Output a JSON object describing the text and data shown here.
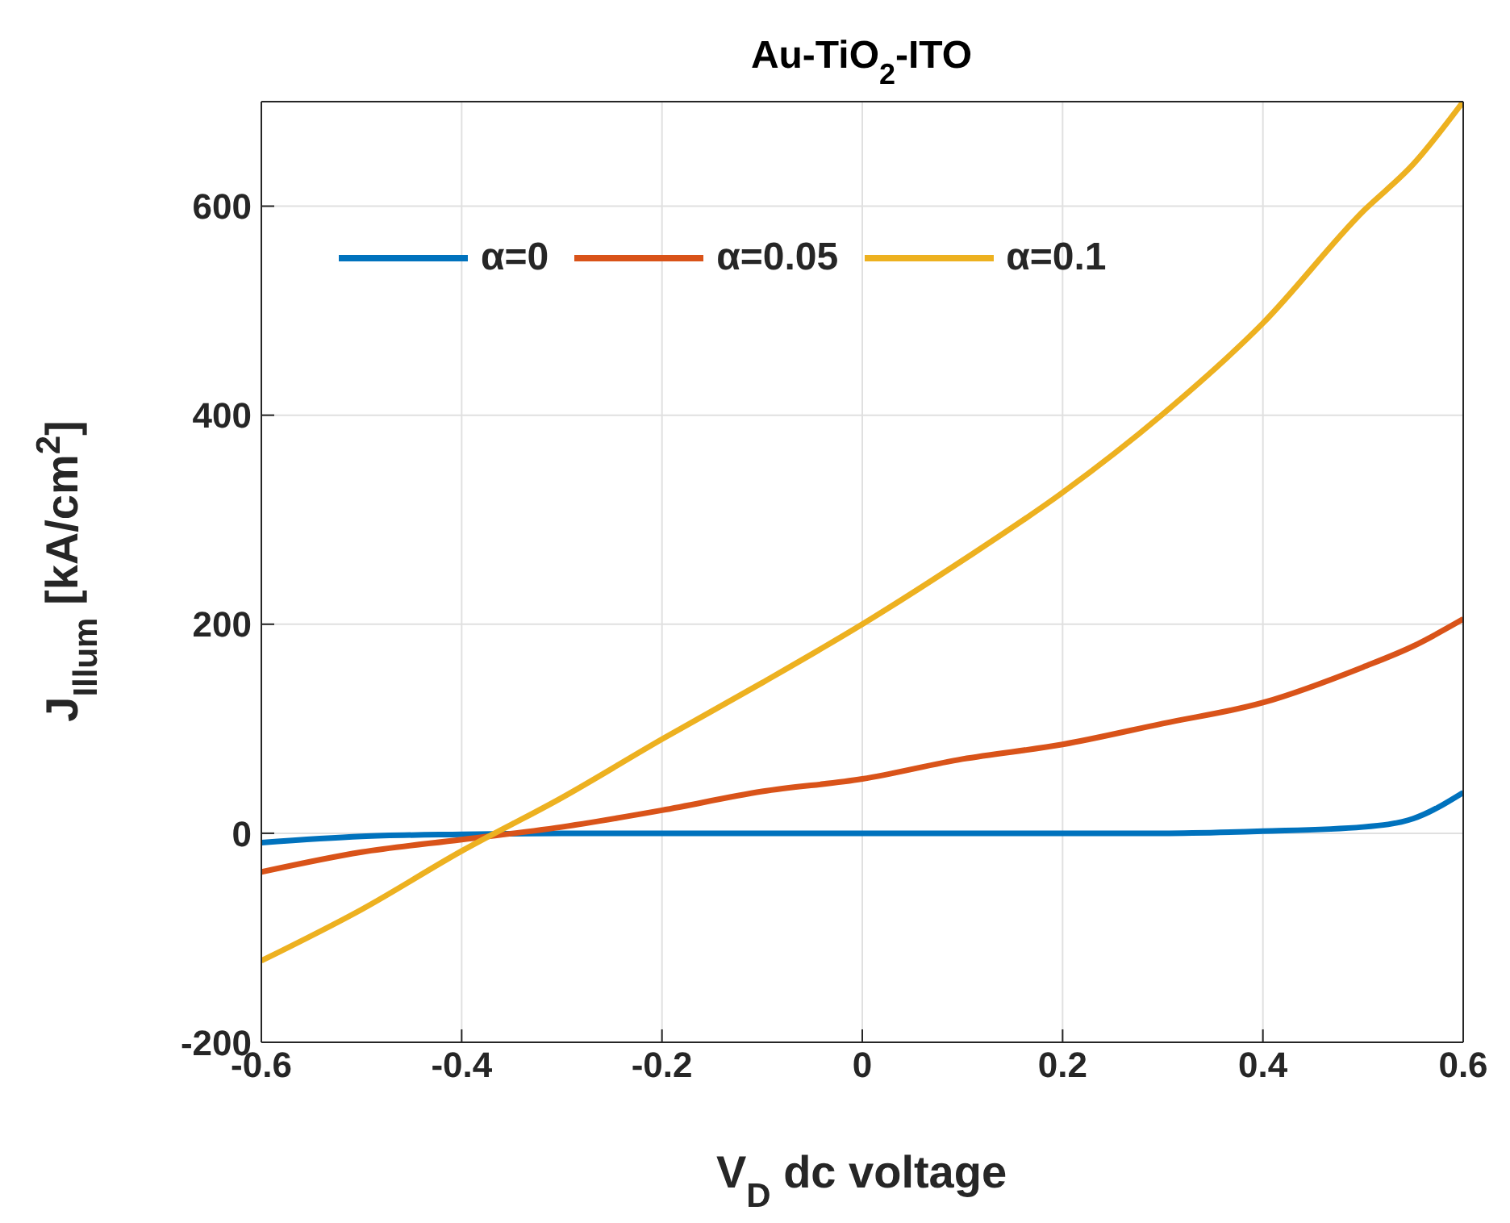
{
  "chart_data": {
    "type": "line",
    "title": "Au-TiO$_{2}$-ITO",
    "xlabel": "V$_{D}$ dc voltage",
    "ylabel": "J$_{Illum}$ [kA/cm$^{2}$]",
    "x": [
      -0.6,
      -0.5,
      -0.4,
      -0.3,
      -0.2,
      -0.1,
      0,
      0.1,
      0.2,
      0.3,
      0.4,
      0.5,
      0.55,
      0.6
    ],
    "series": [
      {
        "name": "α=0",
        "color": "#0072bd",
        "values": [
          -9,
          -3,
          -1,
          0,
          0,
          0,
          0,
          0,
          0,
          0,
          2,
          6,
          14,
          39
        ]
      },
      {
        "name": "α=0.05",
        "color": "#d95319",
        "values": [
          -37,
          -18,
          -6,
          6,
          22,
          40,
          52,
          71,
          85,
          105,
          125,
          159,
          179,
          205
        ]
      },
      {
        "name": "α=0.1",
        "color": "#edb120",
        "values": [
          -122,
          -73,
          -17,
          34,
          90,
          144,
          200,
          261,
          326,
          401,
          488,
          595,
          640,
          700
        ]
      }
    ],
    "xlim": [
      -0.6,
      0.6
    ],
    "xticks": [
      -0.6,
      -0.4,
      -0.2,
      0,
      0.2,
      0.4,
      0.6
    ],
    "ylim": [
      -200,
      700
    ],
    "yticks": [
      -200,
      0,
      200,
      400,
      600
    ],
    "grid": true,
    "legend": "top left",
    "marker": "none",
    "line_style": "solid"
  }
}
